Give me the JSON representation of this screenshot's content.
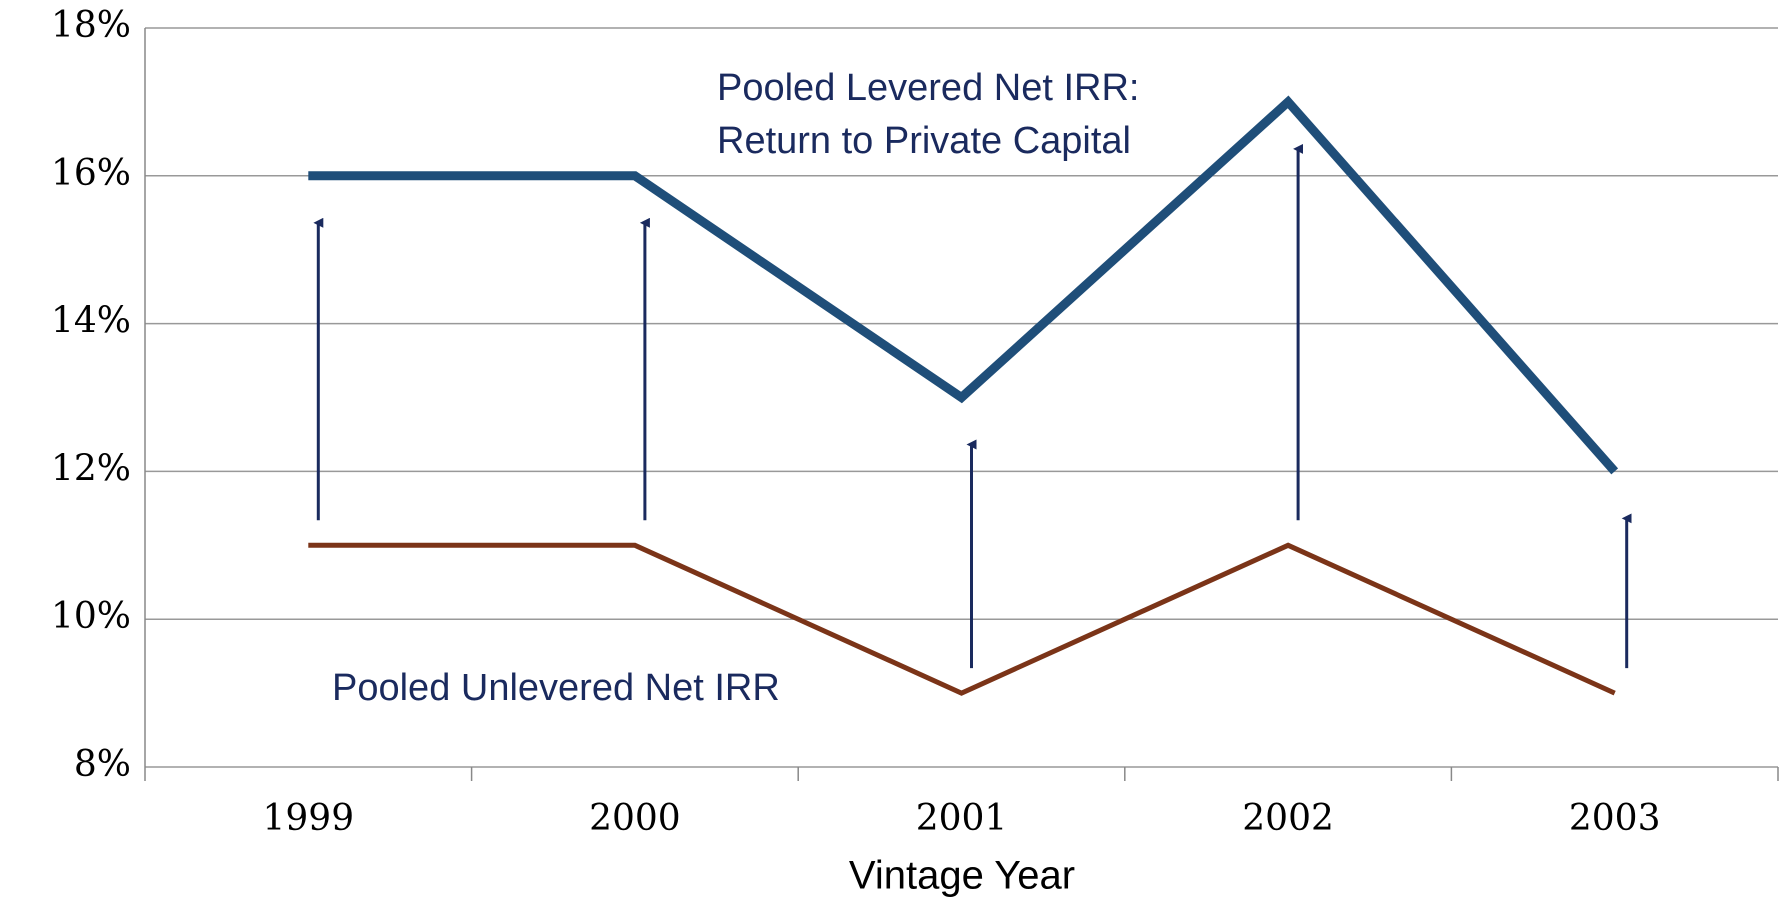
{
  "chart_data": {
    "type": "line",
    "x_label": "Vintage Year",
    "categories": [
      "1999",
      "2000",
      "2001",
      "2002",
      "2003"
    ],
    "series": [
      {
        "name": "Pooled Levered Net IRR: Return to Private Capital",
        "label_lines": [
          "Pooled Levered Net IRR:",
          "Return to Private Capital"
        ],
        "color": "#1f4e79",
        "values": [
          16,
          16,
          13,
          17,
          12
        ]
      },
      {
        "name": "Pooled Unlevered Net IRR",
        "label_lines": [
          "Pooled Unlevered Net IRR"
        ],
        "color": "#7b3418",
        "values": [
          11,
          11,
          9,
          11,
          9
        ]
      }
    ],
    "arrow_color": "#1a2a5e",
    "ylim": [
      8,
      18
    ],
    "yticks": [
      {
        "value": 8,
        "label": "8%"
      },
      {
        "value": 10,
        "label": "10%"
      },
      {
        "value": 12,
        "label": "12%"
      },
      {
        "value": 14,
        "label": "14%"
      },
      {
        "value": 16,
        "label": "16%"
      },
      {
        "value": 18,
        "label": "18%"
      }
    ],
    "grid": true
  }
}
